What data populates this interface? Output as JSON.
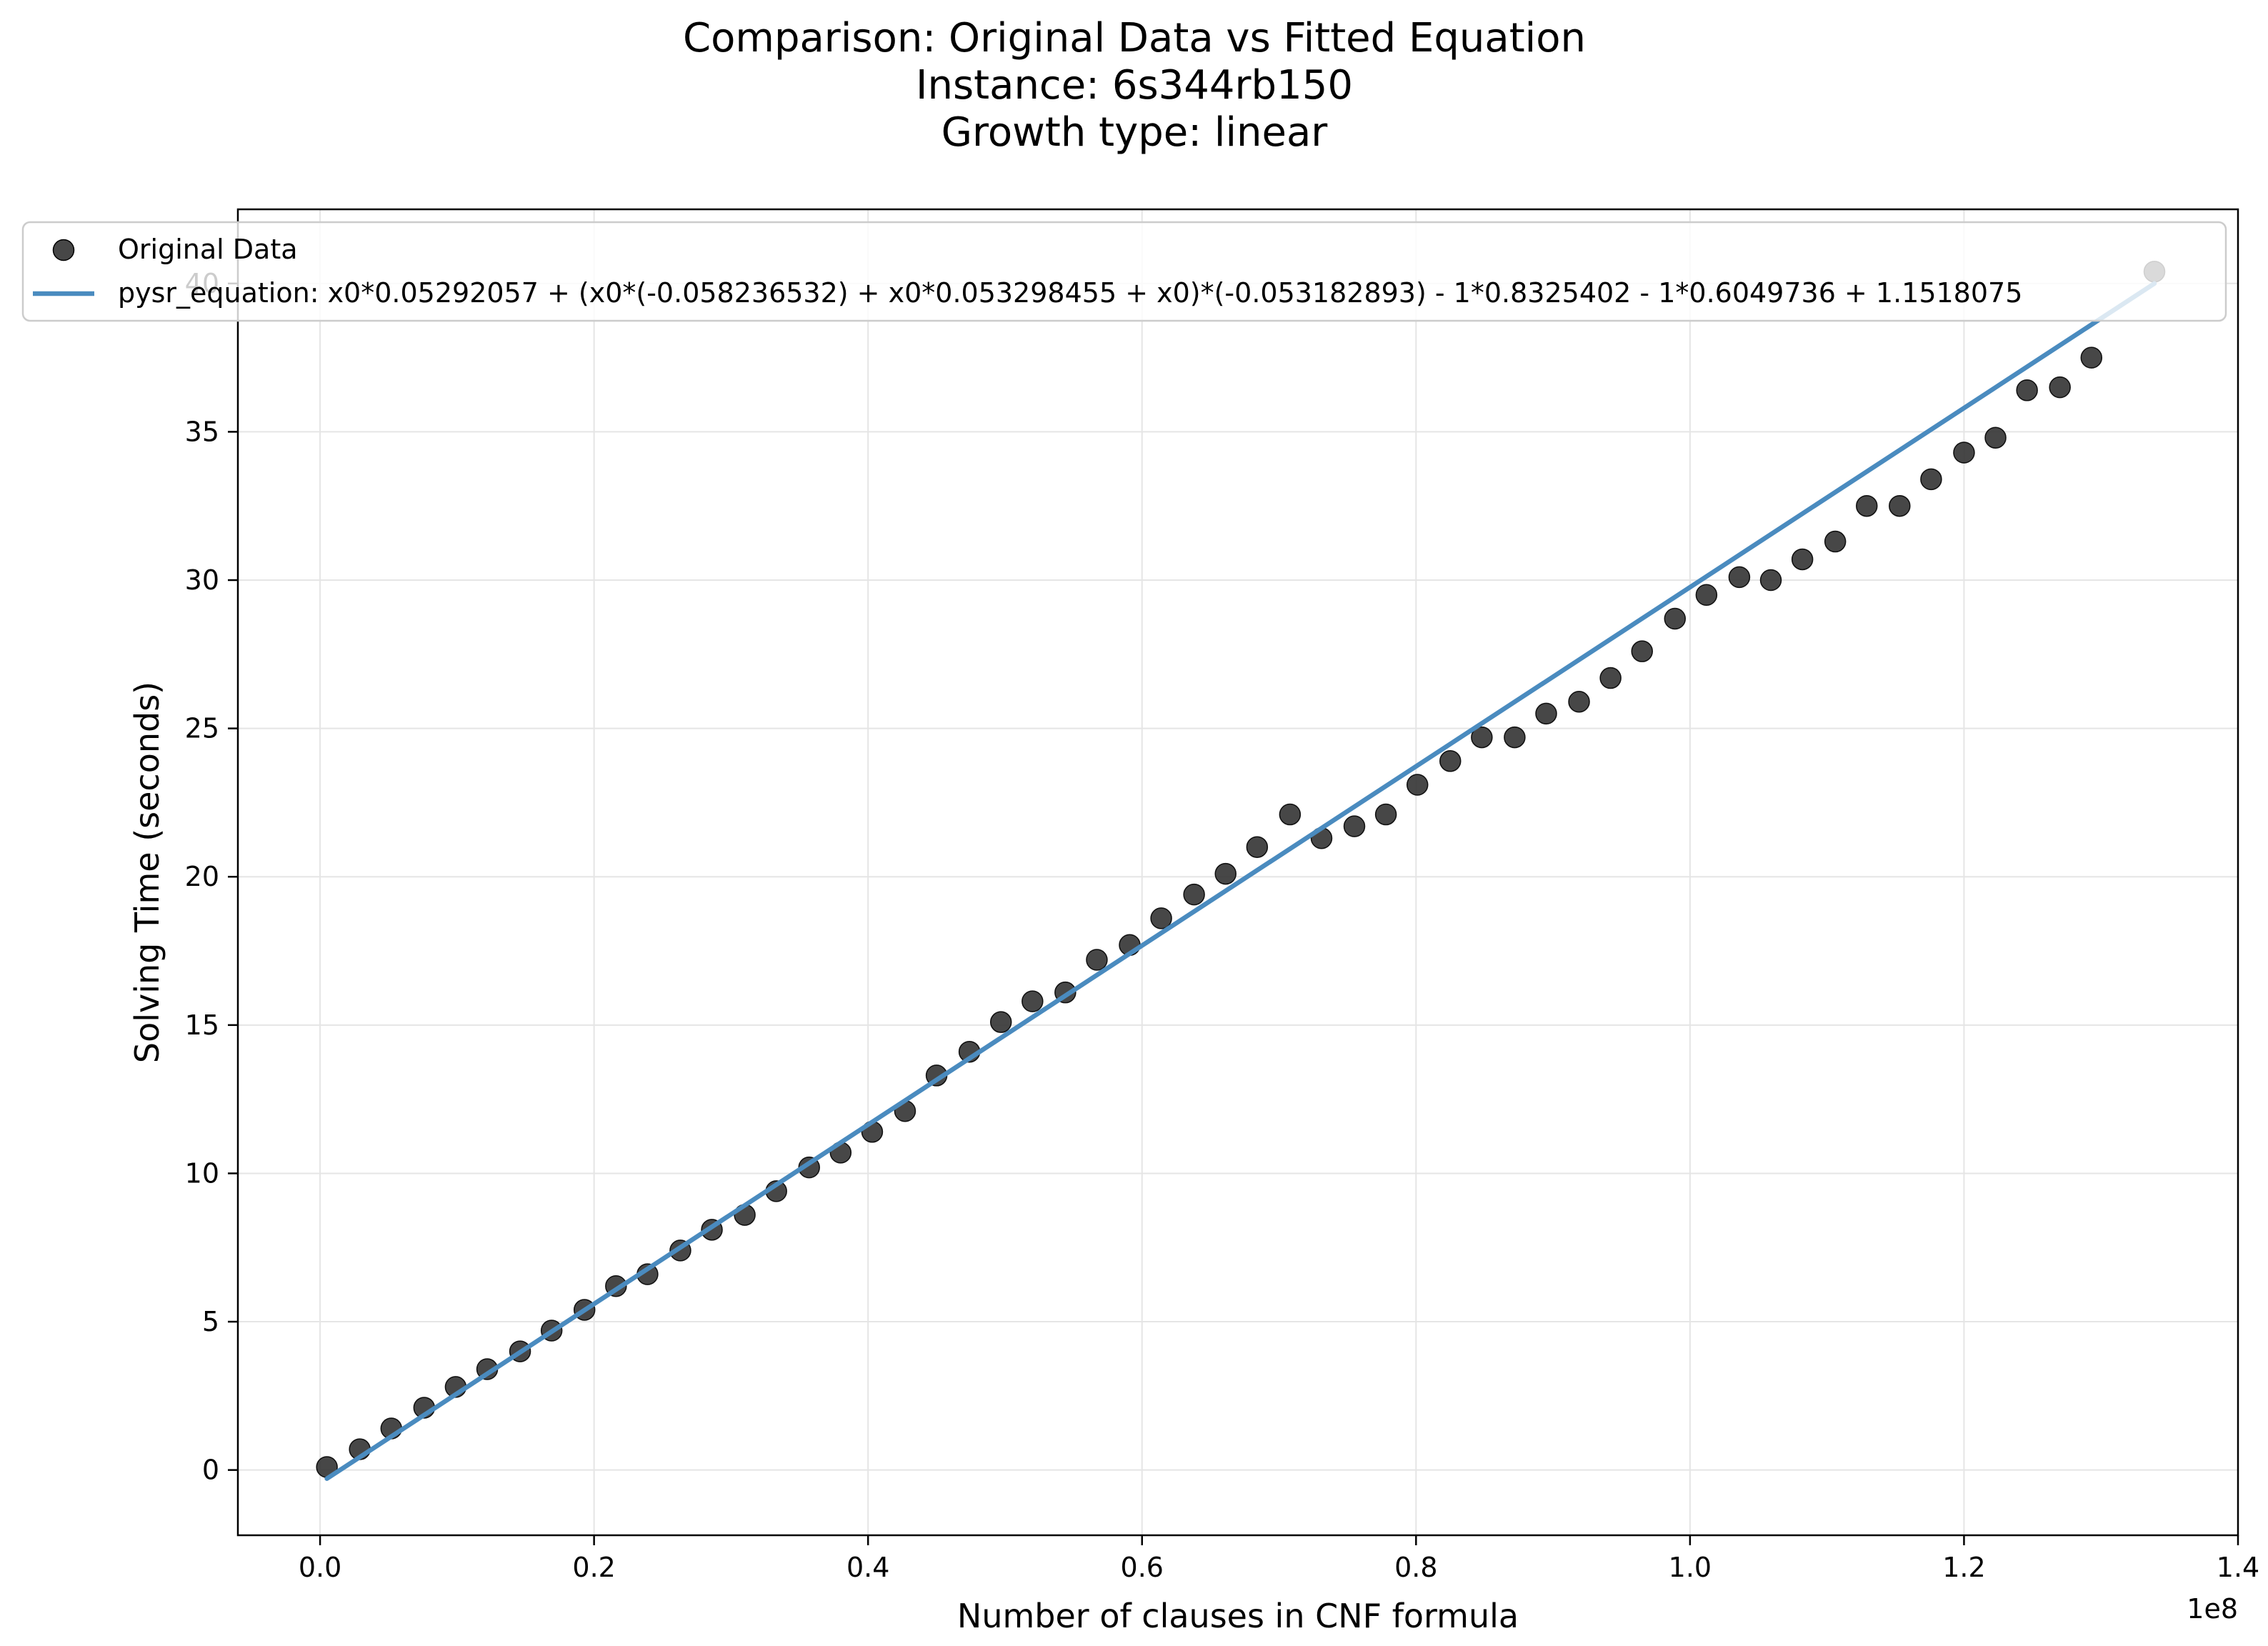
{
  "chart_data": {
    "type": "scatter",
    "title_lines": [
      "Comparison: Original Data vs Fitted Equation",
      "Instance: 6s344rb150",
      "Growth type: linear"
    ],
    "xlabel": "Number of clauses in CNF formula",
    "ylabel": "Solving Time (seconds)",
    "x_offset_label": "1e8",
    "x_scale": 100000000,
    "xlim": [
      -0.06,
      1.4
    ],
    "ylim": [
      -2.2,
      42.5
    ],
    "xticks": [
      0.0,
      0.2,
      0.4,
      0.6,
      0.8,
      1.0,
      1.2,
      1.4
    ],
    "xtick_labels": [
      "0.0",
      "0.2",
      "0.4",
      "0.6",
      "0.8",
      "1.0",
      "1.2",
      "1.4"
    ],
    "yticks": [
      0,
      5,
      10,
      15,
      20,
      25,
      30,
      35,
      40
    ],
    "ytick_labels": [
      "0",
      "5",
      "10",
      "15",
      "20",
      "25",
      "30",
      "35",
      "40"
    ],
    "grid": true,
    "legend_position": "upper-left",
    "colors": {
      "scatter": "#333333",
      "line": "#4a8bbf",
      "grid": "#e5e5e5"
    },
    "series": [
      {
        "name": "Original Data",
        "kind": "scatter",
        "x": [
          0.005,
          0.029,
          0.052,
          0.076,
          0.099,
          0.122,
          0.146,
          0.169,
          0.193,
          0.216,
          0.239,
          0.263,
          0.286,
          0.31,
          0.333,
          0.357,
          0.38,
          0.403,
          0.427,
          0.45,
          0.474,
          0.497,
          0.52,
          0.544,
          0.567,
          0.591,
          0.614,
          0.638,
          0.661,
          0.684,
          0.708,
          0.731,
          0.755,
          0.778,
          0.801,
          0.825,
          0.848,
          0.872,
          0.895,
          0.919,
          0.942,
          0.965,
          0.989,
          1.012,
          1.036,
          1.059,
          1.082,
          1.106,
          1.129,
          1.153,
          1.176,
          1.2,
          1.223,
          1.246,
          1.27,
          1.293,
          1.339
        ],
        "y": [
          0.1,
          0.7,
          1.4,
          2.1,
          2.8,
          3.4,
          4.0,
          4.7,
          5.4,
          6.2,
          6.6,
          7.4,
          8.1,
          8.6,
          9.4,
          10.2,
          10.7,
          11.4,
          12.1,
          13.3,
          14.1,
          15.1,
          15.8,
          16.1,
          17.2,
          17.7,
          18.6,
          19.4,
          20.1,
          21.0,
          22.1,
          21.3,
          21.7,
          22.1,
          23.1,
          23.9,
          24.7,
          24.7,
          25.5,
          25.9,
          26.7,
          27.6,
          28.7,
          29.5,
          30.1,
          30.0,
          30.7,
          31.3,
          32.5,
          32.5,
          33.4,
          34.3,
          34.8,
          36.4,
          36.5,
          37.5,
          40.4
        ]
      },
      {
        "name": "pysr_equation: x0*0.05292057 + (x0*(-0.058236532) + x0*0.053298455 + x0)*(-0.053182893) - 1*0.8325402 - 1*0.6049736 + 1.1518075",
        "kind": "line",
        "x": [
          0.005,
          1.339
        ],
        "y": [
          -0.29,
          40.0
        ]
      }
    ]
  }
}
